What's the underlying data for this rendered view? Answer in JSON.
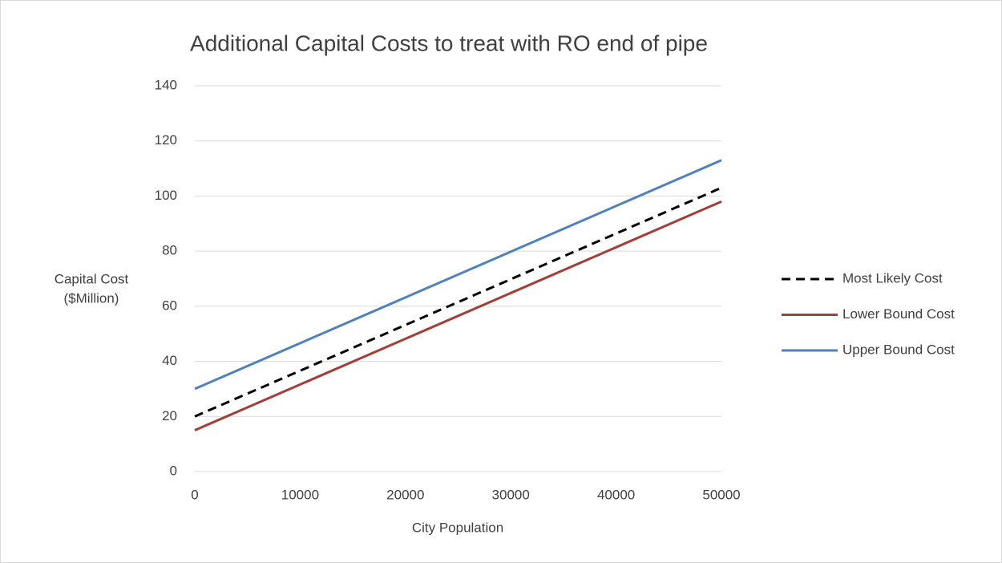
{
  "chart_data": {
    "type": "line",
    "title": "Additional Capital Costs to treat with RO end of pipe",
    "x_label": "City Population",
    "y_label": [
      "Capital Cost",
      "($Million)"
    ],
    "x": [
      0,
      50000
    ],
    "series": [
      {
        "name": "Most Likely Cost",
        "color": "#000000",
        "dashed": true,
        "values": [
          20,
          103
        ]
      },
      {
        "name": "Lower Bound Cost",
        "color": "#a33e38",
        "dashed": false,
        "values": [
          15,
          98
        ]
      },
      {
        "name": "Upper Bound Cost",
        "color": "#4f81bd",
        "dashed": false,
        "values": [
          30,
          113
        ]
      }
    ],
    "xlim": [
      0,
      50000
    ],
    "xticks": [
      0,
      10000,
      20000,
      30000,
      40000,
      50000
    ],
    "ylim": [
      0,
      140
    ],
    "yticks": [
      0,
      20,
      40,
      60,
      80,
      100,
      120,
      140
    ],
    "grid": true,
    "legend": "right"
  }
}
